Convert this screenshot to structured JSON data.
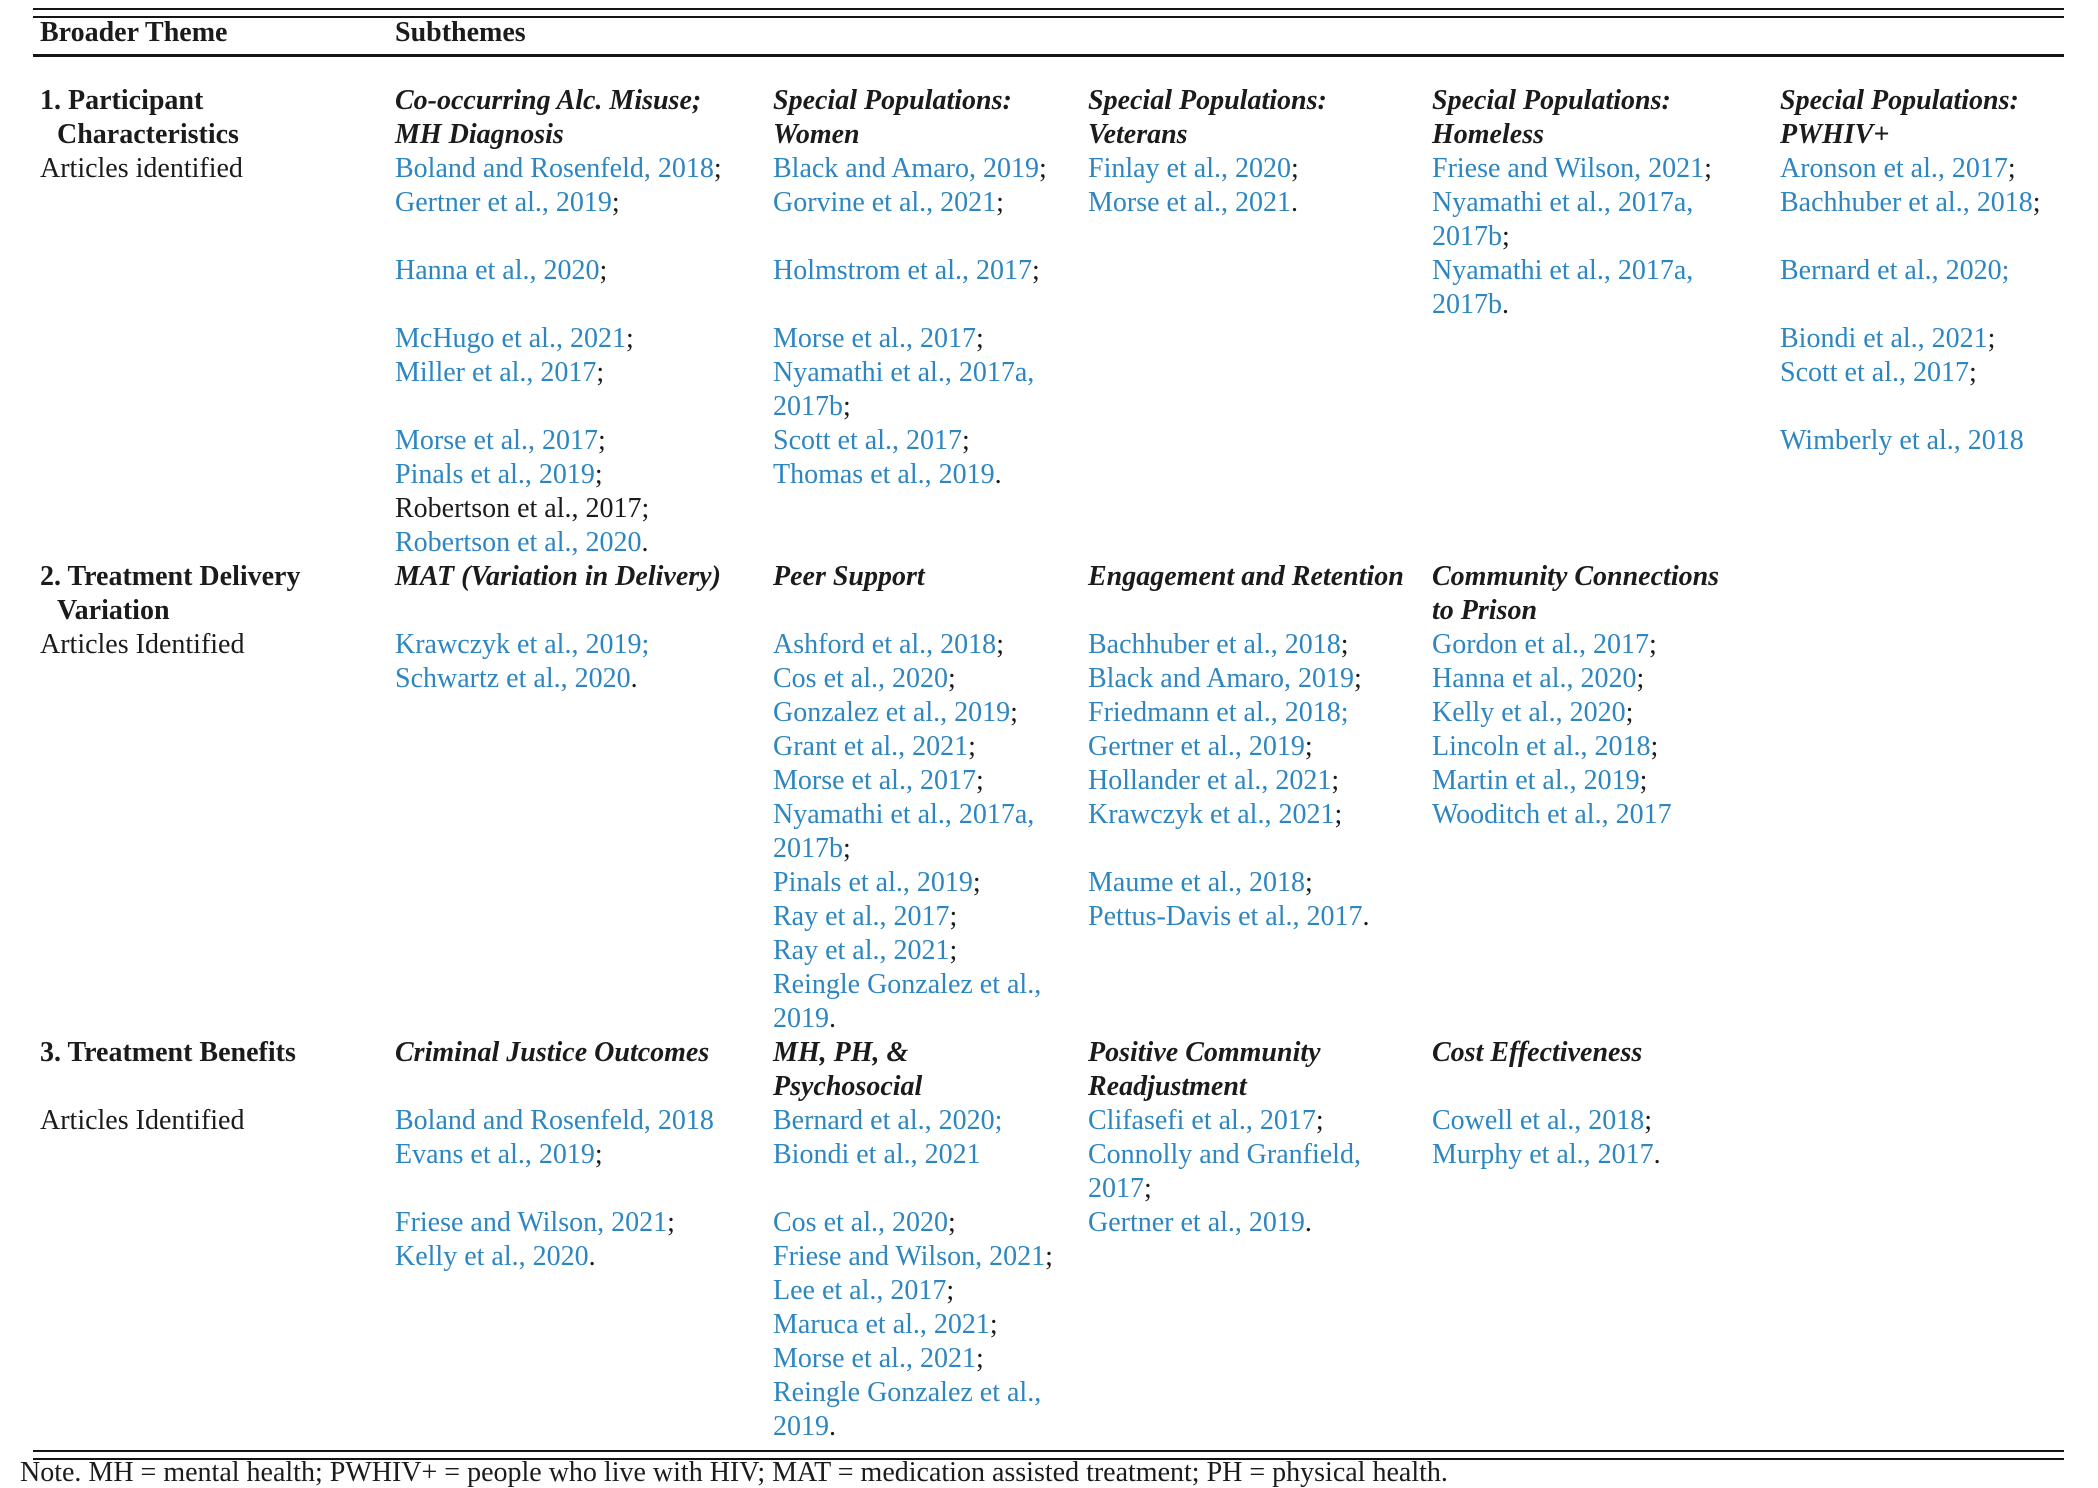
{
  "colors": {
    "link": "#2e86c1",
    "text": "#1b1b1b",
    "rule": "#141414",
    "background": "#ffffff"
  },
  "header": {
    "broader_theme": "Broader Theme",
    "subthemes": "Subthemes"
  },
  "note": "Note. MH = mental health; PWHIV+ = people who live with HIV; MAT = medication assisted treatment; PH = physical health.",
  "table": {
    "rows": [
      {
        "theme_lines": [
          {
            "t": "1. Participant",
            "s": "bold"
          },
          {
            "t": "Characteristics",
            "s": "bold-indent"
          },
          {
            "t": "Articles identified",
            "s": "plain"
          }
        ],
        "subthemes": [
          {
            "title_lines": [
              "Co-occurring Alc. Misuse;",
              "MH Diagnosis"
            ],
            "lines": [
              {
                "a": "Boland and Rosenfeld, 2018",
                "b": ";"
              },
              {
                "a": "Gertner et al., 2019",
                "b": ";"
              },
              {},
              {
                "a": "Hanna et al., 2020",
                "b": ";"
              },
              {},
              {
                "a": "McHugo et al., 2021",
                "b": ";"
              },
              {
                "a": "Miller et al., 2017",
                "b": ";"
              },
              {},
              {
                "a": "Morse et al., 2017",
                "b": ";"
              },
              {
                "a": "Pinals et al., 2019",
                "b": ";"
              },
              {
                "p": "Robertson et al., 2017;"
              },
              {
                "a": "Robertson et al., 2020",
                "b": "."
              }
            ]
          },
          {
            "title_lines": [
              "Special Populations:",
              "Women"
            ],
            "lines": [
              {
                "a": "Black and Amaro, 2019",
                "b": ";"
              },
              {
                "a": "Gorvine et al., 2021",
                "b": ";"
              },
              {},
              {
                "a": "Holmstrom et al., 2017",
                "b": ";"
              },
              {},
              {
                "a": "Morse et al., 2017",
                "b": ";"
              },
              {
                "a": "Nyamathi et al., 2017a,"
              },
              {
                "a": "2017b",
                "b": ";"
              },
              {
                "a": "Scott et al., 2017",
                "b": ";"
              },
              {
                "a": "Thomas et al., 2019",
                "b": "."
              }
            ]
          },
          {
            "title_lines": [
              "Special Populations:",
              "Veterans"
            ],
            "lines": [
              {
                "a": "Finlay et al., 2020",
                "b": ";"
              },
              {
                "a": "Morse et al., 2021",
                "b": "."
              }
            ]
          },
          {
            "title_lines": [
              "Special Populations:",
              "Homeless"
            ],
            "lines": [
              {
                "a": "Friese and Wilson, 2021",
                "b": ";"
              },
              {
                "a": "Nyamathi et al., 2017a,"
              },
              {
                "a": "2017b",
                "b": ";"
              },
              {
                "a": "Nyamathi et al., 2017a,"
              },
              {
                "a": "2017b",
                "b": "."
              }
            ]
          },
          {
            "title_lines": [
              "Special Populations:",
              "PWHIV+"
            ],
            "lines": [
              {
                "a": "Aronson et al., 2017",
                "b": ";"
              },
              {
                "a": "Bachhuber et al., 2018",
                "b": ";"
              },
              {},
              {
                "a": "Bernard et al., 2020;"
              },
              {},
              {
                "a": "Biondi et al., 2021",
                "b": ";"
              },
              {
                "a": "Scott et al., 2017",
                "b": ";"
              },
              {},
              {
                "a": "Wimberly et al., 2018"
              }
            ]
          }
        ]
      },
      {
        "theme_lines": [
          {
            "t": "2. Treatment Delivery",
            "s": "bold"
          },
          {
            "t": "Variation",
            "s": "bold-indent"
          },
          {
            "t": "Articles Identified",
            "s": "plain"
          }
        ],
        "subthemes": [
          {
            "title_lines": [
              "MAT (Variation in Delivery)",
              ""
            ],
            "lines": [
              {
                "a": "Krawczyk et al., 2019;"
              },
              {
                "a": "Schwartz et al., 2020",
                "b": "."
              }
            ]
          },
          {
            "title_lines": [
              "Peer Support",
              ""
            ],
            "lines": [
              {
                "a": "Ashford et al., 2018",
                "b": ";"
              },
              {
                "a": "Cos et al., 2020",
                "b": ";"
              },
              {
                "a": "Gonzalez et al., 2019",
                "b": ";"
              },
              {
                "a": "Grant et al., 2021",
                "b": ";"
              },
              {
                "a": "Morse et al., 2017",
                "b": ";"
              },
              {
                "a": "Nyamathi et al., 2017a,"
              },
              {
                "a": "2017b",
                "b": ";"
              },
              {
                "a": "Pinals et al., 2019",
                "b": ";"
              },
              {
                "a": "Ray et al., 2017",
                "b": ";"
              },
              {
                "a": "Ray et al., 2021",
                "b": ";"
              },
              {
                "a": "Reingle Gonzalez et al.,"
              },
              {
                "a": "2019",
                "b": "."
              }
            ]
          },
          {
            "title_lines": [
              "Engagement and Retention",
              ""
            ],
            "lines": [
              {
                "a": "Bachhuber et al., 2018",
                "b": ";"
              },
              {
                "a": "Black and Amaro, 2019",
                "b": ";"
              },
              {
                "a": "Friedmann et al., 2018;"
              },
              {
                "a": "Gertner et al., 2019",
                "b": ";"
              },
              {
                "a": "Hollander et al., 2021",
                "b": ";"
              },
              {
                "a": "Krawczyk et al., 2021",
                "b": ";"
              },
              {},
              {
                "a": "Maume et al., 2018",
                "b": ";"
              },
              {
                "a": "Pettus-Davis et al., 2017",
                "b": "."
              }
            ]
          },
          {
            "title_lines": [
              "Community Connections",
              "to Prison"
            ],
            "lines": [
              {
                "a": "Gordon et al., 2017",
                "b": ";"
              },
              {
                "a": "Hanna et al., 2020",
                "b": ";"
              },
              {
                "a": "Kelly et al., 2020",
                "b": ";"
              },
              {
                "a": "Lincoln et al., 2018",
                "b": ";"
              },
              {
                "a": "Martin et al., 2019",
                "b": ";"
              },
              {
                "a": "Wooditch et al., 2017"
              }
            ]
          }
        ]
      },
      {
        "theme_lines": [
          {
            "t": "3. Treatment Benefits",
            "s": "bold"
          },
          {
            "t": "",
            "s": "plain"
          },
          {
            "t": "Articles Identified",
            "s": "plain"
          }
        ],
        "subthemes": [
          {
            "title_lines": [
              "Criminal Justice Outcomes",
              ""
            ],
            "lines": [
              {
                "a": "Boland and Rosenfeld, 2018"
              },
              {
                "a": "Evans et al., 2019",
                "b": ";"
              },
              {},
              {
                "a": "Friese and Wilson, 2021",
                "b": ";"
              },
              {
                "a": "Kelly et al., 2020",
                "b": "."
              }
            ]
          },
          {
            "title_lines": [
              "MH, PH, &",
              "Psychosocial"
            ],
            "lines": [
              {
                "a": "Bernard et al., 2020;"
              },
              {
                "a": "Biondi et al., 2021"
              },
              {},
              {
                "a": "Cos et al., 2020",
                "b": ";"
              },
              {
                "a": "Friese and Wilson, 2021",
                "b": ";"
              },
              {
                "a": "Lee et al., 2017",
                "b": ";"
              },
              {
                "a": "Maruca et al., 2021",
                "b": ";"
              },
              {
                "a": "Morse et al., 2021",
                "b": ";"
              },
              {
                "a": "Reingle Gonzalez et al.,"
              },
              {
                "a": "2019",
                "b": "."
              }
            ]
          },
          {
            "title_lines": [
              "Positive Community",
              "Readjustment"
            ],
            "lines": [
              {
                "a": "Clifasefi et al., 2017",
                "b": ";"
              },
              {
                "a": "Connolly and Granfield,"
              },
              {
                "a": "2017",
                "b": ";"
              },
              {
                "a": "Gertner et al., 2019",
                "b": "."
              }
            ]
          },
          {
            "title_lines": [
              "Cost Effectiveness",
              ""
            ],
            "lines": [
              {
                "a": "Cowell et al., 2018",
                "b": ";"
              },
              {
                "a": "Murphy et al., 2017",
                "b": "."
              }
            ]
          }
        ]
      }
    ]
  }
}
